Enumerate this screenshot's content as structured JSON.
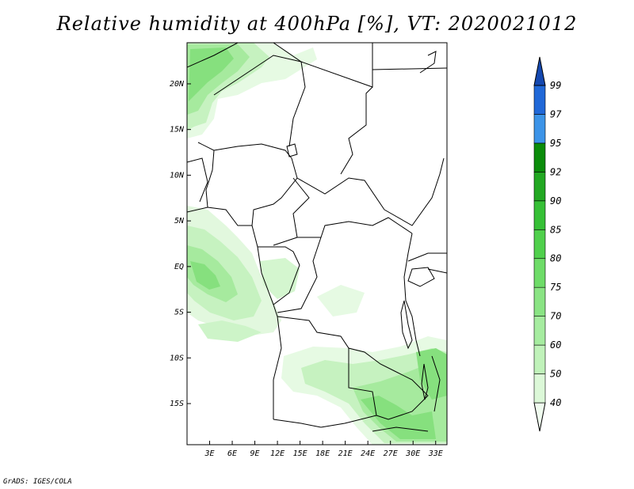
{
  "title": "Relative humidity at 400hPa [%], VT: 2020021012",
  "credit": "GrADS: IGES/COLA",
  "map": {
    "lon_range": [
      0,
      34.5
    ],
    "lat_range": [
      -19.5,
      24.5
    ],
    "x_ticks": [
      {
        "value": 3,
        "label": "3E"
      },
      {
        "value": 6,
        "label": "6E"
      },
      {
        "value": 9,
        "label": "9E"
      },
      {
        "value": 12,
        "label": "12E"
      },
      {
        "value": 15,
        "label": "15E"
      },
      {
        "value": 18,
        "label": "18E"
      },
      {
        "value": 21,
        "label": "21E"
      },
      {
        "value": 24,
        "label": "24E"
      },
      {
        "value": 27,
        "label": "27E"
      },
      {
        "value": 30,
        "label": "30E"
      },
      {
        "value": 33,
        "label": "33E"
      }
    ],
    "y_ticks": [
      {
        "value": 20,
        "label": "20N"
      },
      {
        "value": 15,
        "label": "15N"
      },
      {
        "value": 10,
        "label": "10N"
      },
      {
        "value": 5,
        "label": "5N"
      },
      {
        "value": 0,
        "label": "EQ"
      },
      {
        "value": -5,
        "label": "5S"
      },
      {
        "value": -10,
        "label": "10S"
      },
      {
        "value": -15,
        "label": "15S"
      }
    ]
  },
  "colorbar": {
    "labels": [
      "40",
      "50",
      "60",
      "70",
      "75",
      "80",
      "85",
      "90",
      "92",
      "95",
      "97",
      "99"
    ],
    "colors": [
      "#f0fcef",
      "#dcf8d8",
      "#c0f2ba",
      "#a6eca0",
      "#8ae484",
      "#6edc68",
      "#50d04c",
      "#36c036",
      "#22a822",
      "#0a8c0a",
      "#3c94e8",
      "#2068d8",
      "#1448b0"
    ]
  },
  "colors": {
    "level1": "#e6fae3",
    "level2": "#cdf4c8",
    "level3": "#aeec a6",
    "level4": "#8fe286",
    "level5": "#6ad663"
  }
}
